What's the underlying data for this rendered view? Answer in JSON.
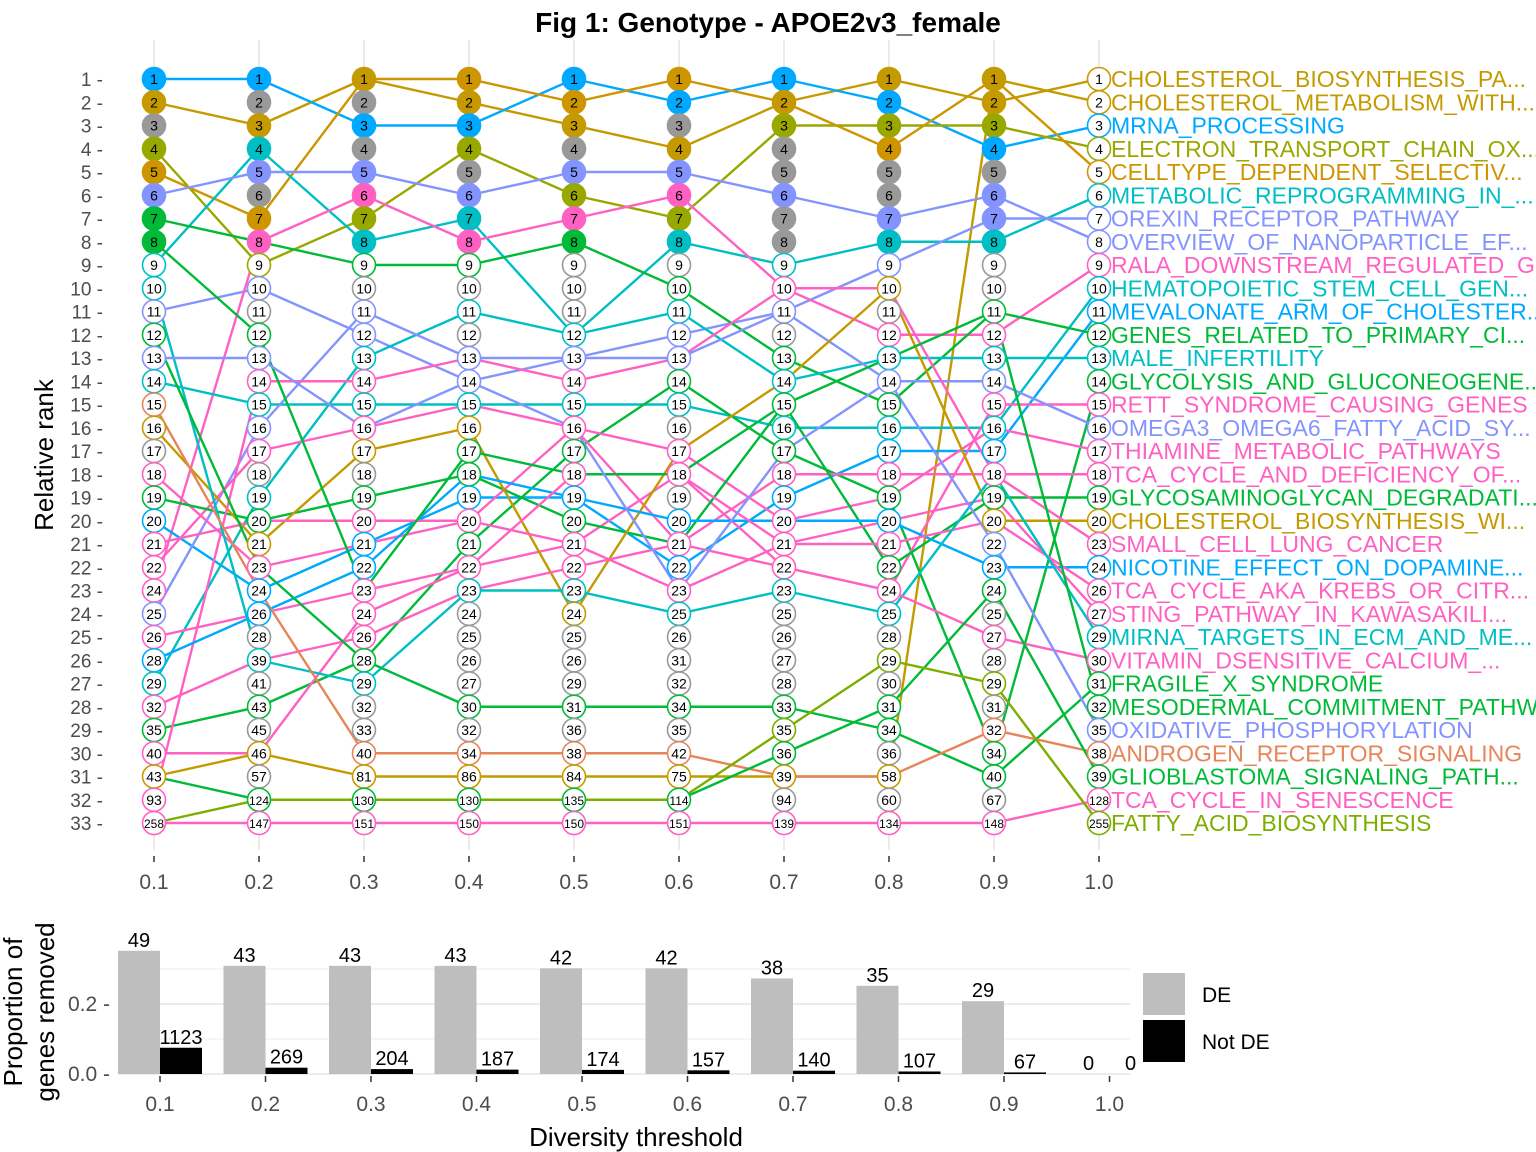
{
  "title": "Fig 1: Genotype - APOE2v3_female",
  "chart_data": [
    {
      "type": "line",
      "name": "rank-bump-chart",
      "ylabel": "Relative rank",
      "x": [
        "0.1",
        "0.2",
        "0.3",
        "0.4",
        "0.5",
        "0.6",
        "0.7",
        "0.8",
        "0.9",
        "1.0"
      ],
      "y_ticks": [
        "1",
        "2",
        "3",
        "4",
        "5",
        "6",
        "7",
        "8",
        "9",
        "10",
        "11",
        "12",
        "13",
        "14",
        "15",
        "16",
        "17",
        "18",
        "19",
        "20",
        "21",
        "22",
        "23",
        "24",
        "25",
        "26",
        "27",
        "28",
        "29",
        "30",
        "31",
        "32",
        "33"
      ],
      "ylim": [
        1,
        33
      ],
      "y_reversed": true,
      "grid": "vertical",
      "node_labels": [
        [
          1,
          2,
          3,
          4,
          5,
          6,
          7,
          8,
          9,
          10,
          11,
          12,
          13,
          14,
          15,
          16,
          17,
          18,
          19,
          20,
          21,
          22,
          24,
          25,
          26,
          28,
          29,
          32,
          35,
          40,
          43,
          93,
          258
        ],
        [
          1,
          2,
          3,
          4,
          5,
          6,
          7,
          8,
          9,
          10,
          11,
          12,
          13,
          14,
          15,
          16,
          17,
          18,
          19,
          20,
          21,
          23,
          24,
          26,
          28,
          39,
          41,
          43,
          45,
          46,
          57,
          124,
          147
        ],
        [
          1,
          2,
          3,
          4,
          5,
          6,
          7,
          8,
          9,
          10,
          11,
          12,
          13,
          14,
          15,
          16,
          17,
          18,
          19,
          20,
          21,
          22,
          23,
          24,
          26,
          28,
          29,
          32,
          33,
          40,
          81,
          130,
          151
        ],
        [
          1,
          2,
          3,
          4,
          5,
          6,
          7,
          8,
          9,
          10,
          11,
          12,
          13,
          14,
          15,
          16,
          17,
          18,
          19,
          20,
          21,
          22,
          23,
          24,
          25,
          26,
          27,
          30,
          32,
          34,
          86,
          130,
          150
        ],
        [
          1,
          2,
          3,
          4,
          5,
          6,
          7,
          8,
          9,
          10,
          11,
          12,
          13,
          14,
          15,
          16,
          17,
          18,
          19,
          20,
          21,
          22,
          23,
          24,
          25,
          26,
          29,
          31,
          36,
          38,
          84,
          135,
          150
        ],
        [
          1,
          2,
          3,
          4,
          5,
          6,
          7,
          8,
          9,
          10,
          11,
          12,
          13,
          14,
          15,
          16,
          17,
          18,
          19,
          20,
          21,
          22,
          23,
          25,
          26,
          31,
          32,
          34,
          35,
          42,
          75,
          114,
          151
        ],
        [
          1,
          2,
          3,
          4,
          5,
          6,
          7,
          8,
          9,
          10,
          11,
          12,
          13,
          14,
          15,
          16,
          17,
          18,
          19,
          20,
          21,
          22,
          23,
          25,
          26,
          27,
          28,
          33,
          35,
          36,
          39,
          94,
          139
        ],
        [
          1,
          2,
          3,
          4,
          5,
          6,
          7,
          8,
          9,
          10,
          11,
          12,
          13,
          14,
          15,
          16,
          17,
          18,
          19,
          20,
          21,
          22,
          24,
          25,
          28,
          29,
          30,
          31,
          34,
          36,
          58,
          60,
          134
        ],
        [
          1,
          2,
          3,
          4,
          5,
          6,
          7,
          8,
          9,
          10,
          11,
          12,
          13,
          14,
          15,
          16,
          17,
          18,
          19,
          20,
          22,
          23,
          24,
          25,
          27,
          28,
          29,
          31,
          32,
          34,
          40,
          67,
          148
        ],
        [
          1,
          2,
          3,
          4,
          5,
          6,
          7,
          8,
          9,
          10,
          11,
          12,
          13,
          14,
          15,
          16,
          17,
          18,
          19,
          20,
          23,
          24,
          26,
          27,
          29,
          30,
          31,
          32,
          35,
          38,
          39,
          128,
          255
        ]
      ],
      "series": [
        {
          "name": "CHOLESTEROL_BIOSYNTHESIS_PA...",
          "color": "#C49A00",
          "ranks": [
            2,
            3,
            1,
            2,
            3,
            4,
            2,
            1,
            2,
            1
          ]
        },
        {
          "name": "CHOLESTEROL_METABOLISM_WITH...",
          "color": "#C49A00",
          "ranks": [
            31,
            30,
            31,
            31,
            31,
            31,
            31,
            31,
            1,
            2
          ]
        },
        {
          "name": "MRNA_PROCESSING",
          "color": "#00A9FF",
          "ranks": [
            1,
            1,
            3,
            3,
            1,
            2,
            1,
            2,
            4,
            3
          ]
        },
        {
          "name": "ELECTRON_TRANSPORT_CHAIN_OX...",
          "color": "#99A800",
          "ranks": [
            4,
            9,
            7,
            4,
            6,
            7,
            3,
            3,
            3,
            4
          ]
        },
        {
          "name": "CELLTYPE_DEPENDENT_SELECTIV...",
          "color": "#CD9600",
          "ranks": [
            5,
            7,
            1,
            1,
            2,
            1,
            2,
            4,
            1,
            5
          ]
        },
        {
          "name": "METABOLIC_REPROGRAMMING_IN_...",
          "color": "#00BFC4",
          "ranks": [
            9,
            4,
            8,
            7,
            12,
            8,
            9,
            8,
            8,
            6
          ]
        },
        {
          "name": "OREXIN_RECEPTOR_PATHWAY",
          "color": "#8494FF",
          "ranks": [
            11,
            10,
            12,
            14,
            13,
            12,
            11,
            9,
            7,
            7
          ]
        },
        {
          "name": "OVERVIEW_OF_NANOPARTICLE_EF...",
          "color": "#8494FF",
          "ranks": [
            6,
            5,
            5,
            6,
            5,
            5,
            6,
            7,
            6,
            8
          ]
        },
        {
          "name": "RALA_DOWNSTREAM_REGULATED_G...",
          "color": "#FF61C3",
          "ranks": [
            23,
            8,
            6,
            8,
            7,
            6,
            10,
            12,
            12,
            9
          ]
        },
        {
          "name": "HEMATOPOIETIC_STEM_CELL_GEN...",
          "color": "#00BFC4",
          "ranks": [
            14,
            15,
            15,
            15,
            15,
            15,
            16,
            16,
            16,
            10
          ]
        },
        {
          "name": "MEVALONATE_ARM_OF_CHOLESTER...",
          "color": "#00A9FF",
          "ranks": [
            20,
            23,
            21,
            19,
            19,
            22,
            19,
            17,
            17,
            11
          ]
        },
        {
          "name": "GENES_RELATED_TO_PRIMARY_CI...",
          "color": "#00BA38",
          "ranks": [
            7,
            8,
            9,
            9,
            8,
            10,
            13,
            15,
            11,
            12
          ]
        },
        {
          "name": "MALE_INFERTILITY",
          "color": "#00BFC4",
          "ranks": [
            27,
            19,
            13,
            11,
            12,
            11,
            14,
            13,
            13,
            13
          ]
        },
        {
          "name": "GLYCOLYSIS_AND_GLUCONEOGENE...",
          "color": "#00BA38",
          "ranks": [
            29,
            28,
            26,
            21,
            17,
            14,
            17,
            19,
            30,
            14
          ]
        },
        {
          "name": "RETT_SYNDROME_CAUSING_GENES",
          "color": "#FF61C3",
          "ranks": [
            30,
            30,
            24,
            22,
            21,
            18,
            22,
            23,
            15,
            15
          ]
        },
        {
          "name": "OMEGA3_OMEGA6_FATTY_ACID_SY...",
          "color": "#8494FF",
          "ranks": [
            24,
            16,
            11,
            13,
            13,
            13,
            11,
            14,
            14,
            16
          ]
        },
        {
          "name": "THIAMINE_METABOLIC_PATHWAYS",
          "color": "#FF61C3",
          "ranks": [
            18,
            22,
            21,
            20,
            16,
            17,
            20,
            19,
            16,
            17
          ]
        },
        {
          "name": "TCA_CYCLE_AND_DEFICIENCY_OF...",
          "color": "#FF61C3",
          "ranks": [
            22,
            17,
            16,
            15,
            16,
            21,
            18,
            18,
            18,
            18
          ]
        },
        {
          "name": "GLYCOSAMINOGLYCAN_DEGRADATI...",
          "color": "#00BA38",
          "ranks": [
            19,
            20,
            19,
            18,
            20,
            21,
            15,
            22,
            19,
            19
          ]
        },
        {
          "name": "CHOLESTEROL_BIOSYNTHESIS_WI...",
          "color": "#C49A00",
          "ranks": [
            16,
            21,
            17,
            16,
            24,
            17,
            14,
            10,
            20,
            20
          ]
        },
        {
          "name": "SMALL_CELL_LUNG_CANCER",
          "color": "#FF61C3",
          "ranks": [
            32,
            14,
            14,
            13,
            14,
            13,
            10,
            10,
            18,
            21
          ]
        },
        {
          "name": "NICOTINE_EFFECT_ON_DOPAMINE...",
          "color": "#00A9FF",
          "ranks": [
            26,
            24,
            22,
            18,
            19,
            20,
            20,
            20,
            22,
            22
          ]
        },
        {
          "name": "TCA_CYCLE_AKA_KREBS_OR_CITR...",
          "color": "#FF61C3",
          "ranks": [
            25,
            24,
            23,
            22,
            18,
            18,
            21,
            21,
            20,
            23
          ]
        },
        {
          "name": "STING_PATHWAY_IN_KAWASAKILI...",
          "color": "#FF61C3",
          "ranks": [
            21,
            20,
            20,
            20,
            21,
            23,
            21,
            20,
            19,
            24
          ]
        },
        {
          "name": "MIRNA_TARGETS_IN_ECM_AND_ME...",
          "color": "#00BFC4",
          "ranks": [
            10,
            26,
            27,
            23,
            23,
            24,
            23,
            24,
            18,
            25
          ]
        },
        {
          "name": "VITAMIN_DSENSITIVE_CALCIUM_...",
          "color": "#FF61C3",
          "ranks": [
            28,
            26,
            25,
            23,
            22,
            21,
            22,
            23,
            25,
            26
          ]
        },
        {
          "name": "FRAGILE_X_SYNDROME",
          "color": "#00BA38",
          "ranks": [
            12,
            22,
            26,
            28,
            28,
            28,
            28,
            29,
            31,
            27
          ]
        },
        {
          "name": "MESODERMAL_COMMITMENT_PATHW...",
          "color": "#00BA38",
          "ranks": [
            8,
            12,
            23,
            17,
            18,
            18,
            15,
            13,
            11,
            28
          ]
        },
        {
          "name": "OXIDATIVE_PHOSPHORYLATION",
          "color": "#8494FF",
          "ranks": [
            13,
            13,
            16,
            14,
            16,
            23,
            17,
            14,
            21,
            29
          ]
        },
        {
          "name": "ANDROGEN_RECEPTOR_SIGNALING",
          "color": "#E6855A",
          "ranks": [
            15,
            23,
            30,
            30,
            30,
            30,
            31,
            31,
            29,
            30
          ]
        },
        {
          "name": "GLIOBLASTOMA_SIGNALING_PATH...",
          "color": "#00BA38",
          "ranks": [
            31,
            32,
            32,
            32,
            32,
            32,
            30,
            28,
            23,
            31
          ]
        },
        {
          "name": "TCA_CYCLE_IN_SENESCENCE",
          "color": "#FF61C3",
          "ranks": [
            33,
            33,
            33,
            33,
            33,
            33,
            33,
            33,
            33,
            32
          ]
        },
        {
          "name": "FATTY_ACID_BIOSYNTHESIS",
          "color": "#7CAE00",
          "ranks": [
            33,
            32,
            32,
            32,
            32,
            32,
            29,
            26,
            27,
            33
          ]
        }
      ]
    },
    {
      "type": "bar",
      "name": "genes-removed-bars",
      "ylabel_lines": [
        "Proportion of",
        "genes removed"
      ],
      "xlabel": "Diversity threshold",
      "categories": [
        "0.1",
        "0.2",
        "0.3",
        "0.4",
        "0.5",
        "0.6",
        "0.7",
        "0.8",
        "0.9",
        "1.0"
      ],
      "ylim": [
        0,
        0.36
      ],
      "y_ticks": [
        0.0,
        0.2
      ],
      "y_tick_labels": [
        "0.0",
        "0.2"
      ],
      "legend_position": "right",
      "series": [
        {
          "name": "DE",
          "color": "#BEBEBE",
          "values": [
            0.352,
            0.309,
            0.309,
            0.309,
            0.302,
            0.302,
            0.273,
            0.252,
            0.208,
            0.0
          ],
          "labels": [
            "49",
            "43",
            "43",
            "43",
            "42",
            "42",
            "38",
            "35",
            "29",
            "0"
          ]
        },
        {
          "name": "Not DE",
          "color": "#000000",
          "values": [
            0.075,
            0.018,
            0.014,
            0.0125,
            0.0117,
            0.0105,
            0.0094,
            0.0072,
            0.0045,
            0.0
          ],
          "labels": [
            "1123",
            "269",
            "204",
            "187",
            "174",
            "157",
            "140",
            "107",
            "67",
            "0"
          ]
        }
      ]
    }
  ]
}
